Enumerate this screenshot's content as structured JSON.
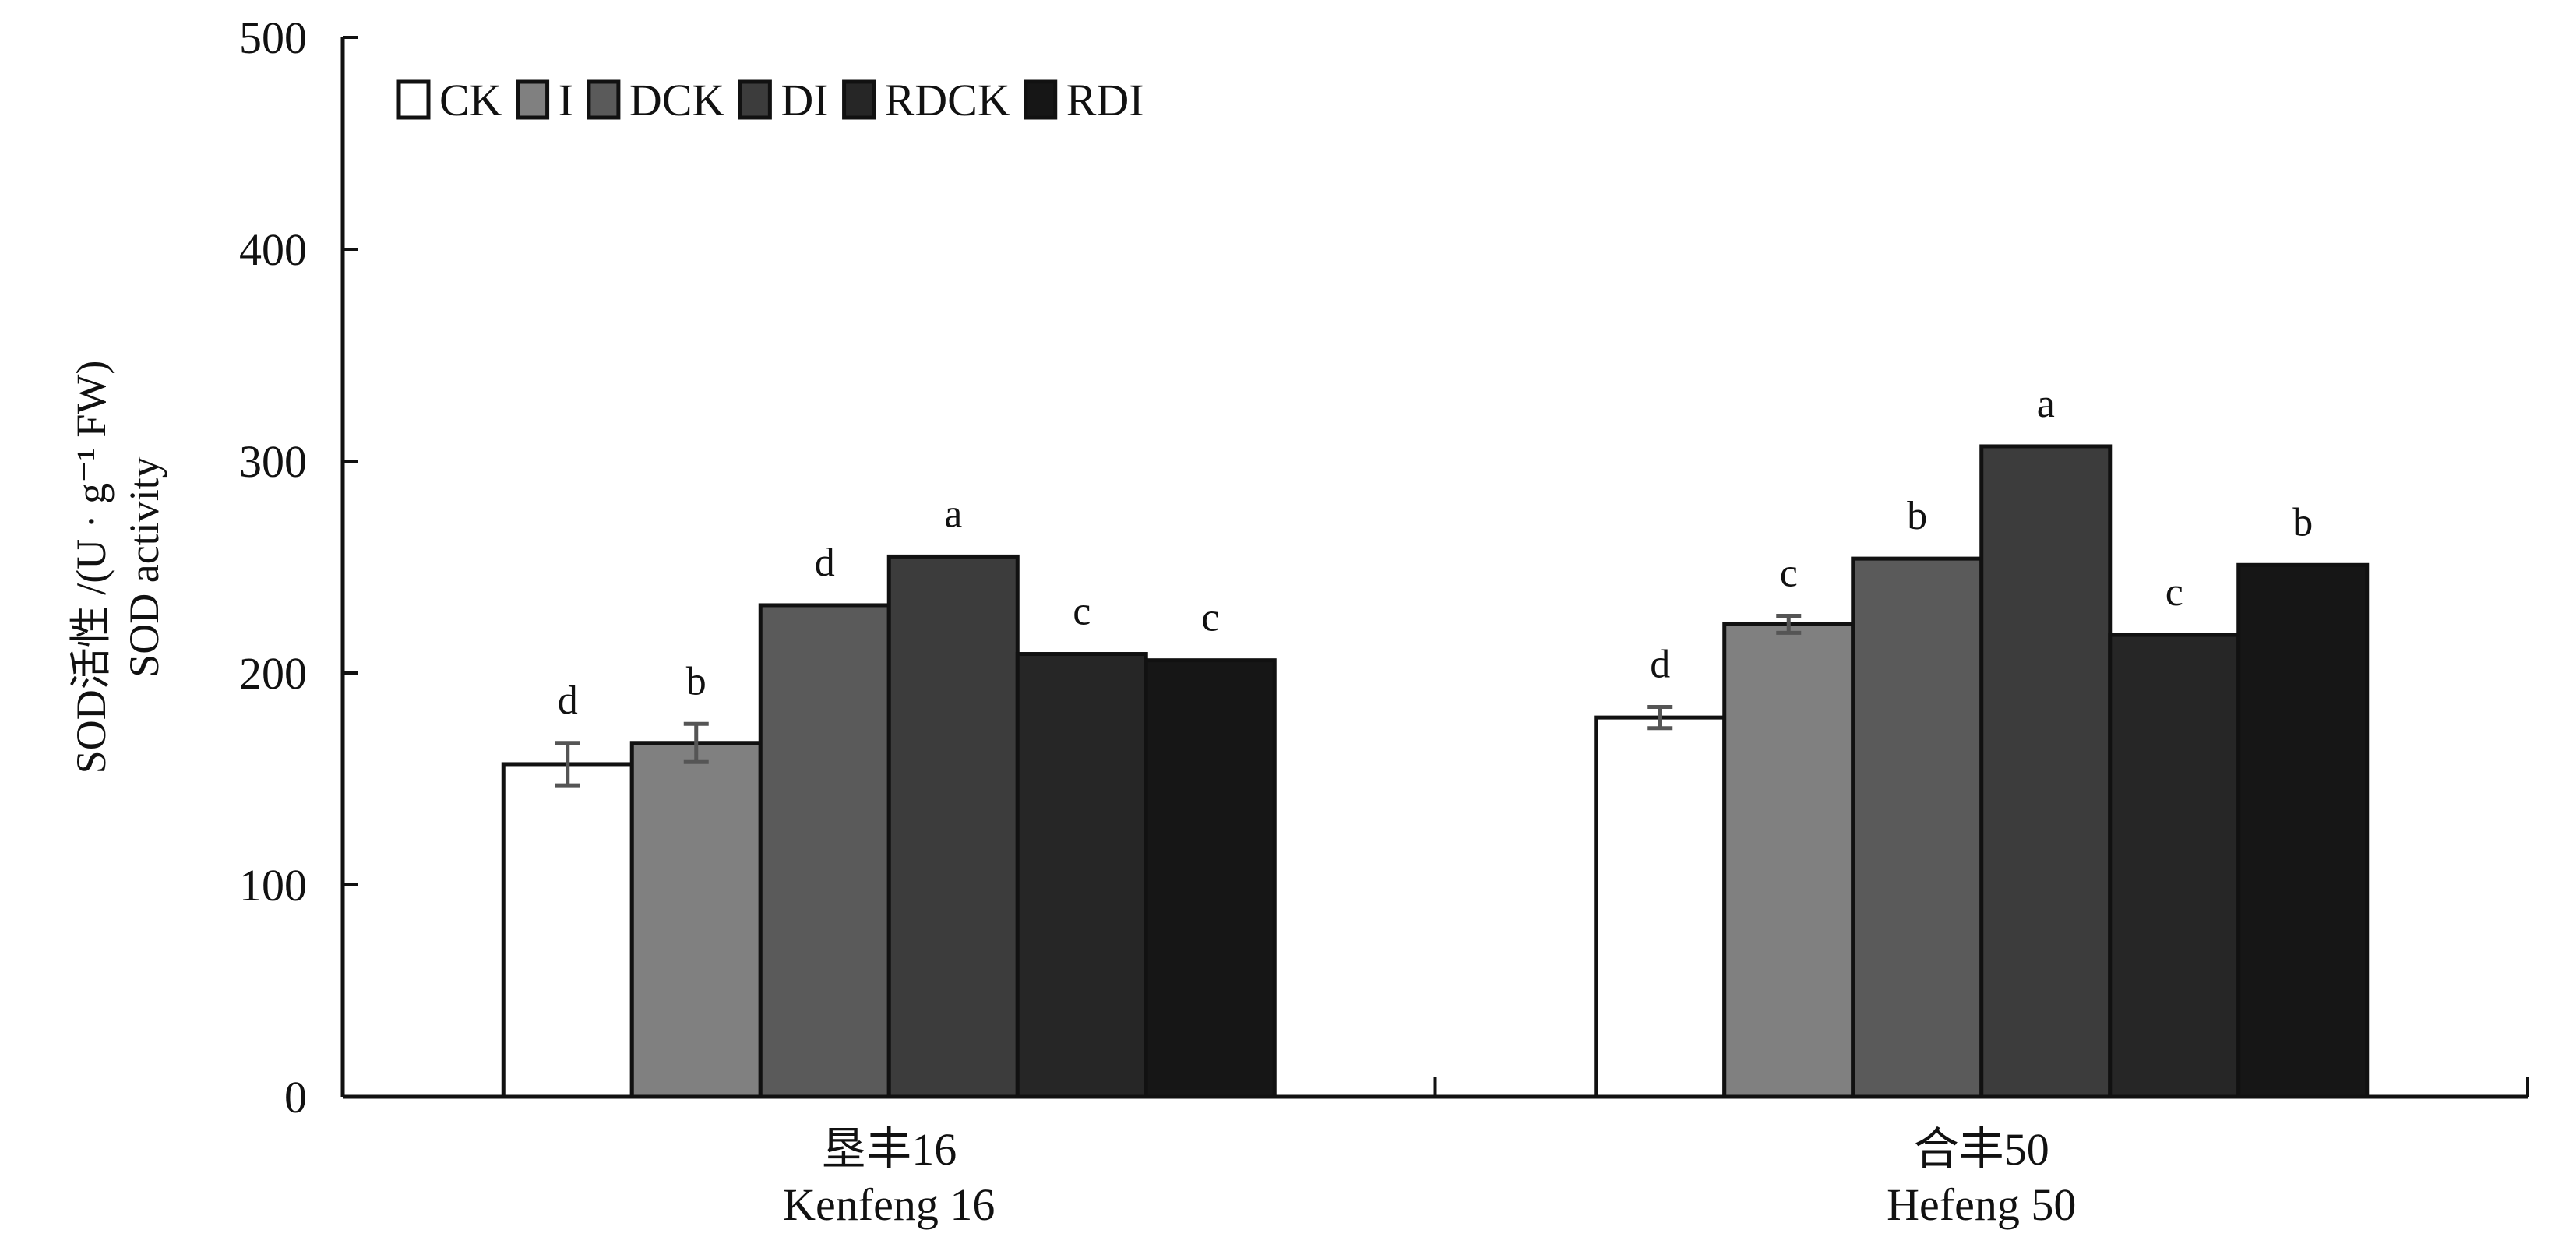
{
  "chart_data": {
    "type": "bar",
    "title": "",
    "ylabel_lines": [
      "SOD活性 /(U · g⁻¹ FW)",
      "SOD activity"
    ],
    "xlabel": "",
    "ylim": [
      0,
      500
    ],
    "y_ticks": [
      "0",
      "100",
      "200",
      "300",
      "400",
      "500"
    ],
    "categories": [
      {
        "cn": "垦丰16",
        "en": "Kenfeng 16"
      },
      {
        "cn": "合丰50",
        "en": "Hefeng 50"
      }
    ],
    "legend_position": "top-left",
    "series": [
      {
        "name": "CK",
        "color": "#ffffff",
        "values": [
          157,
          179
        ],
        "errors": [
          10,
          5
        ],
        "labels": [
          "d",
          "d"
        ]
      },
      {
        "name": "I",
        "color": "#808080",
        "values": [
          167,
          223
        ],
        "errors": [
          9,
          4
        ],
        "labels": [
          "b",
          "c"
        ]
      },
      {
        "name": "DCK",
        "color": "#5a5a5a",
        "values": [
          232,
          254
        ],
        "errors": [
          0,
          0
        ],
        "labels": [
          "d",
          "b"
        ]
      },
      {
        "name": "DI",
        "color": "#3c3c3c",
        "values": [
          255,
          307
        ],
        "errors": [
          0,
          0
        ],
        "labels": [
          "a",
          "a"
        ]
      },
      {
        "name": "RDCK",
        "color": "#262626",
        "values": [
          209,
          218
        ],
        "errors": [
          0,
          0
        ],
        "labels": [
          "c",
          "c"
        ]
      },
      {
        "name": "RDI",
        "color": "#161616",
        "values": [
          206,
          251
        ],
        "errors": [
          0,
          0
        ],
        "labels": [
          "c",
          "b"
        ]
      }
    ]
  }
}
